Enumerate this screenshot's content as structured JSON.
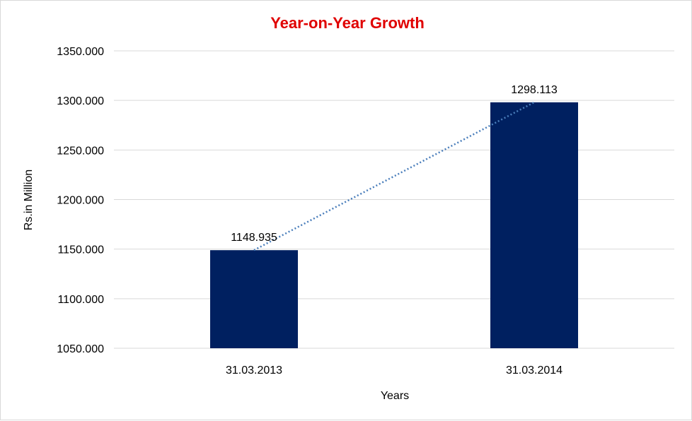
{
  "chart_data": {
    "type": "bar",
    "title": "Year-on-Year Growth",
    "xlabel": "Years",
    "ylabel": "Rs.in Million",
    "categories": [
      "31.03.2013",
      "31.03.2014"
    ],
    "values": [
      1148.935,
      1298.113
    ],
    "data_labels": [
      "1148.935",
      "1298.113"
    ],
    "ylim": [
      1050,
      1350
    ],
    "yticks": [
      1050,
      1100,
      1150,
      1200,
      1250,
      1300,
      1350
    ],
    "ytick_labels": [
      "1050.000",
      "1100.000",
      "1150.000",
      "1200.000",
      "1250.000",
      "1300.000",
      "1350.000"
    ],
    "grid": true,
    "trendline": "linear-dotted",
    "colors": {
      "bar": "#002060",
      "trendline": "#4a7ebb",
      "title": "#e00000",
      "grid": "#d9d9d9"
    }
  }
}
